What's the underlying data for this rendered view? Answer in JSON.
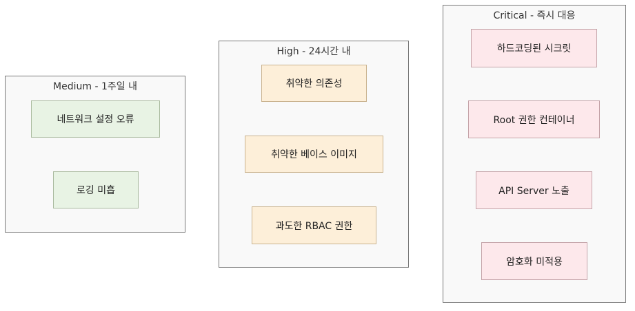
{
  "groups": {
    "medium": {
      "title": "Medium - 1주일 내",
      "items": [
        "네트워크 설정 오류",
        "로깅 미흡"
      ]
    },
    "high": {
      "title": "High - 24시간 내",
      "items": [
        "취약한 의존성",
        "취약한 베이스 이미지",
        "과도한 RBAC 권한"
      ]
    },
    "critical": {
      "title": "Critical - 즉시 대응",
      "items": [
        "하드코딩된 시크릿",
        "Root 권한 컨테이너",
        "API Server 노출",
        "암호화 미적용"
      ]
    }
  },
  "colors": {
    "medium_fill": "#e8f3e4",
    "high_fill": "#fdefd9",
    "critical_fill": "#fde8eb",
    "group_fill": "#f9f9f9"
  }
}
